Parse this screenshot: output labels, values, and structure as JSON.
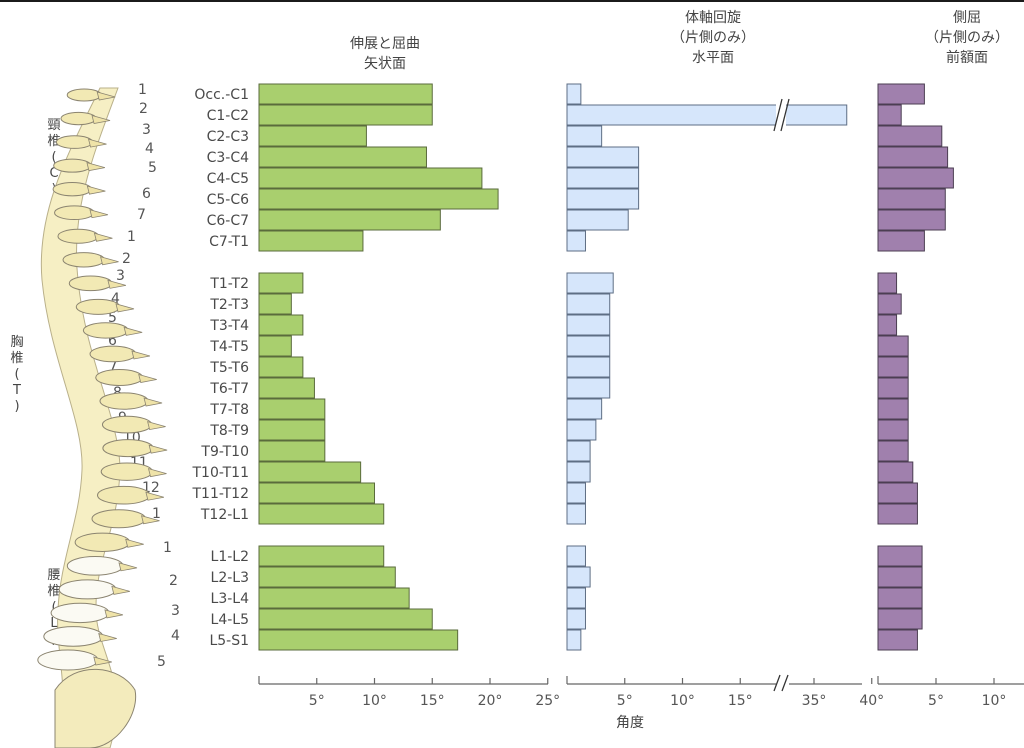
{
  "chart_data": {
    "type": "bar",
    "orientation": "horizontal",
    "categories": [
      "Occ.-C1",
      "C1-C2",
      "C2-C3",
      "C3-C4",
      "C4-C5",
      "C5-C6",
      "C6-C7",
      "C7-T1",
      "T1-T2",
      "T2-T3",
      "T3-T4",
      "T4-T5",
      "T5-T6",
      "T6-T7",
      "T7-T8",
      "T8-T9",
      "T9-T10",
      "T10-T11",
      "T11-T12",
      "T12-L1",
      "L1-L2",
      "L2-L3",
      "L3-L4",
      "L4-L5",
      "L5-S1"
    ],
    "groups": [
      {
        "name": "頸椎",
        "short": "C",
        "start": 0,
        "count": 8
      },
      {
        "name": "胸椎",
        "short": "T",
        "start": 8,
        "count": 12
      },
      {
        "name": "腰椎",
        "short": "L",
        "start": 20,
        "count": 5
      }
    ],
    "panels": [
      {
        "title": [
          "伸展と屈曲",
          "矢状面"
        ],
        "color": "#a9cf6e",
        "stroke": "#5a6b3c",
        "xlim": [
          0,
          25
        ],
        "ticks": [
          5,
          10,
          15,
          20,
          25
        ],
        "values": [
          15,
          15,
          9.3,
          14.5,
          19.3,
          20.7,
          15.7,
          9,
          3.8,
          2.8,
          3.8,
          2.8,
          3.8,
          4.8,
          5.7,
          5.7,
          5.7,
          8.8,
          10,
          10.8,
          10.8,
          11.8,
          13,
          15,
          17.2
        ]
      },
      {
        "title": [
          "体軸回旋",
          "（片側のみ）",
          "水平面"
        ],
        "color": "#d6e6fb",
        "stroke": "#5e6e84",
        "xlim": [
          0,
          15
        ],
        "ticks": [
          5,
          10,
          15
        ],
        "axis_break": {
          "from": 15,
          "to": 35,
          "upper": 40,
          "upper_ticks": [
            35,
            40
          ]
        },
        "values": [
          1.2,
          40,
          3,
          6.2,
          6.2,
          6.2,
          5.3,
          1.6,
          4,
          3.7,
          3.7,
          3.7,
          3.7,
          3.7,
          3,
          2.5,
          2,
          2,
          1.6,
          1.6,
          1.6,
          2,
          1.6,
          1.6,
          1.2
        ]
      },
      {
        "title": [
          "側屈",
          "（片側のみ）",
          "前額面"
        ],
        "color": "#a080ad",
        "stroke": "#4b3e52",
        "xlim": [
          0,
          12
        ],
        "ticks": [
          5,
          10
        ],
        "values": [
          4,
          2,
          5.5,
          6,
          6.5,
          5.8,
          5.8,
          4,
          1.6,
          2,
          1.6,
          2.6,
          2.6,
          2.6,
          2.6,
          2.6,
          2.6,
          3,
          3.4,
          3.4,
          3.8,
          3.8,
          3.8,
          3.8,
          3.4
        ]
      }
    ],
    "xlabel": "角度",
    "degree_symbol": "°",
    "segment_numbers": {
      "C": [
        "1",
        "2",
        "3",
        "4",
        "5",
        "6",
        "7"
      ],
      "T": [
        "1",
        "2",
        "3",
        "4",
        "5",
        "6",
        "7",
        "8",
        "9",
        "10",
        "11",
        "12"
      ],
      "L": [
        "1",
        "2",
        "3",
        "4",
        "5"
      ]
    },
    "region_labels": [
      {
        "chars": [
          "頸",
          "椎",
          "(",
          "C",
          ")"
        ]
      },
      {
        "chars": [
          "胸",
          "椎",
          "(",
          "T",
          ")"
        ]
      },
      {
        "chars": [
          "腰",
          "椎",
          "(",
          "L",
          ")"
        ]
      }
    ]
  }
}
